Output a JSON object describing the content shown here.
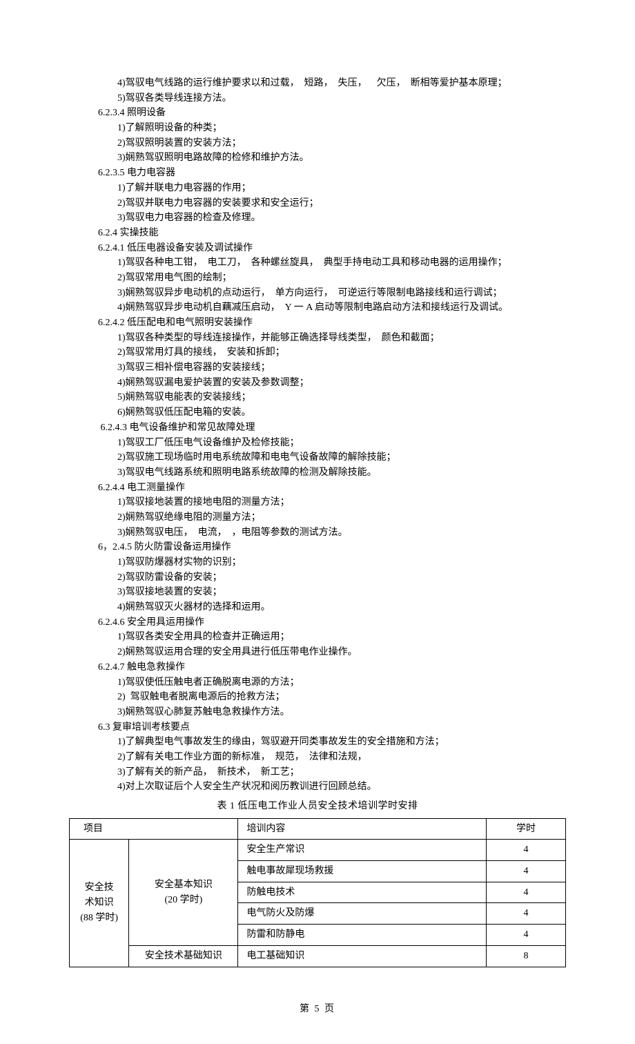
{
  "lines": [
    {
      "cls": "indent-2",
      "text": "4)驾驭电气线路的运行维护要求以和过载，  短路，  失压，　  欠压，  断相等爱护基本原理；"
    },
    {
      "cls": "indent-2",
      "text": "5)驾驭各类导线连接方法。"
    },
    {
      "cls": "indent-1",
      "text": "6.2.3.4 照明设备"
    },
    {
      "cls": "indent-2",
      "text": "1)了解照明设备的种类；"
    },
    {
      "cls": "indent-2",
      "text": "2)驾驭照明装置的安装方法；"
    },
    {
      "cls": "indent-2",
      "text": "3)娴熟驾驭照明电路故障的检修和维护方法。"
    },
    {
      "cls": "indent-1",
      "text": "6.2.3.5 电力电容器"
    },
    {
      "cls": "indent-2",
      "text": "1)了解并联电力电容器的作用；"
    },
    {
      "cls": "indent-2",
      "text": "2)驾驭并联电力电容器的安装要求和安全运行；"
    },
    {
      "cls": "indent-2",
      "text": "3)驾驭电力电容器的检查及修理。"
    },
    {
      "cls": "indent-1",
      "text": "6.2.4 实操技能"
    },
    {
      "cls": "indent-1",
      "text": "6.2.4.1 低压电器设备安装及调试操作"
    },
    {
      "cls": "indent-2",
      "text": "1)驾驭各种电工钳，  电工刀，  各种螺丝旋具，  典型手持电动工具和移动电器的运用操作；"
    },
    {
      "cls": "indent-2",
      "text": "2)驾驭常用电气图的绘制；"
    },
    {
      "cls": "indent-2",
      "text": "3)娴熟驾驭异步电动机的点动运行，  单方向运行，  可逆运行等限制电路接线和运行调试；"
    },
    {
      "cls": "indent-2",
      "text": "4)娴熟驾驭异步电动机自藕减压启动，  Y 一 A 启动等限制电路启动方法和接线运行及调试。"
    },
    {
      "cls": "indent-1",
      "text": "6.2.4.2 低压配电和电气照明安装操作"
    },
    {
      "cls": "indent-2",
      "text": "1)驾驭各种类型的导线连接操作，并能够正确选择导线类型，  颜色和截面；"
    },
    {
      "cls": "indent-2",
      "text": "2)驾驭常用灯具的接线，  安装和拆卸；"
    },
    {
      "cls": "indent-2",
      "text": "3)驾驭三相补偿电容器的安装接线；"
    },
    {
      "cls": "indent-2",
      "text": "4)娴熟驾驭漏电爱护装置的安装及参数调整；"
    },
    {
      "cls": "indent-2",
      "text": "5)娴熟驾驭电能表的安装接线；"
    },
    {
      "cls": "indent-2",
      "text": "6)娴熟驾驭低压配电箱的安装。"
    },
    {
      "cls": "indent-1",
      "text": " 6.2.4.3 电气设备维护和常见故障处理"
    },
    {
      "cls": "indent-2",
      "text": "1)驾驭工厂低压电气设备维护及检修技能；"
    },
    {
      "cls": "indent-2",
      "text": "2)驾驭施工现场临时用电系统故障和电电气设备故障的解除技能；"
    },
    {
      "cls": "indent-2",
      "text": "3)驾驭电气线路系统和照明电路系统故障的检测及解除技能。"
    },
    {
      "cls": "indent-1",
      "text": "6.2.4.4 电工测量操作"
    },
    {
      "cls": "indent-2",
      "text": "1)驾驭接地装置的接地电阻的测量方法；"
    },
    {
      "cls": "indent-2",
      "text": "2)娴熟驾驭绝缘电阻的测量方法；"
    },
    {
      "cls": "indent-2",
      "text": "3)娴熟驾驭电压，  电流，  ，电阻等参数的测试方法。"
    },
    {
      "cls": "indent-1",
      "text": "6，2.4.5 防火防雷设备运用操作"
    },
    {
      "cls": "indent-2",
      "text": "1)驾驭防爆器材实物的识别；"
    },
    {
      "cls": "indent-2",
      "text": "2)驾驭防雷设备的安装；"
    },
    {
      "cls": "indent-2",
      "text": "3)驾驭接地装置的安装；"
    },
    {
      "cls": "indent-2",
      "text": "4)娴熟驾驭灭火器材的选择和运用。"
    },
    {
      "cls": "indent-1",
      "text": "6.2.4.6 安全用具运用操作"
    },
    {
      "cls": "indent-2",
      "text": "1)驾驭各类安全用具的检查并正确运用；"
    },
    {
      "cls": "indent-2",
      "text": "2)娴熟驾驭运用合理的安全用具进行低压带电作业操作。"
    },
    {
      "cls": "indent-1",
      "text": "6.2.4.7 触电急救操作"
    },
    {
      "cls": "indent-2",
      "text": "1)驾驭使低压触电者正确脱离电源的方法；"
    },
    {
      "cls": "indent-2",
      "text": "2)  驾驭触电者脱离电源后的抢救方法；"
    },
    {
      "cls": "indent-2",
      "text": "3)娴熟驾驭心肺复苏触电急救操作方法。"
    },
    {
      "cls": "indent-1",
      "text": "6.3 复审培训考核要点"
    },
    {
      "cls": "indent-2",
      "text": "1)了解典型电气事故发生的缘由，驾驭避开同类事故发生的安全措施和方法；"
    },
    {
      "cls": "indent-2",
      "text": "2)了解有关电工作业方面的新标准，  规范，  法律和法规，"
    },
    {
      "cls": "indent-2",
      "text": "3)了解有关的新产品，  新技术，  新工艺；"
    },
    {
      "cls": "indent-2",
      "text": "4)对上次取证后个人安全生产状况和阅历教训进行回顾总结。"
    }
  ],
  "tableTitle": "表 1   低压电工作业人员安全技术培训学时安排",
  "table": {
    "header": {
      "project": "项目",
      "content": "培训内容",
      "hours": "学时"
    },
    "projectGroup": "安全技\n术知识\n(88 学时)",
    "subGroup1": "安全基本知识\n(20 学时)",
    "subGroup2": "安全技术基础知识",
    "rows": [
      {
        "content": "安全生产常识",
        "hours": "4"
      },
      {
        "content": "触电事故犀现场救援",
        "hours": "4"
      },
      {
        "content": "防触电技术",
        "hours": "4"
      },
      {
        "content": "电气防火及防爆",
        "hours": "4"
      },
      {
        "content": "防雷和防静电",
        "hours": "4"
      },
      {
        "content": "电工基础知识",
        "hours": "8"
      }
    ]
  },
  "footer": "第 5 页"
}
